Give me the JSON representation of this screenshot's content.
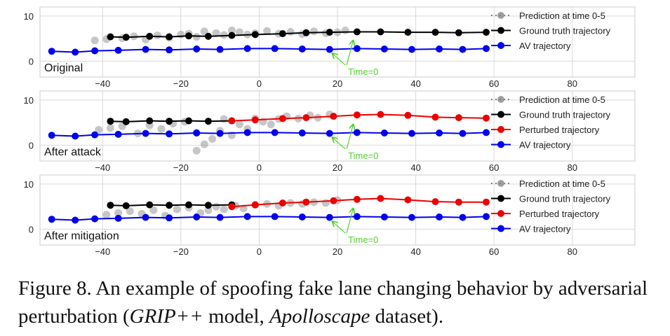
{
  "figure": {
    "caption_prefix": "Figure 8. An example of spoofing fake lane changing behavior by adversarial perturbation (",
    "caption_model": "GRIP++",
    "caption_mid": " model, ",
    "caption_dataset": "Apolloscape",
    "caption_suffix": " dataset)."
  },
  "colors": {
    "av": "#0000ee",
    "ground_truth": "#000000",
    "perturbed": "#ee0000",
    "prediction": "#808080",
    "annotation": "#55cc33",
    "grid": "#d9d9d9"
  },
  "chart_data": [
    {
      "type": "line",
      "panel_label": "Original",
      "xlim": [
        -56,
        96
      ],
      "ylim": [
        -3.5,
        12
      ],
      "xticks": [
        -40,
        -20,
        0,
        20,
        40,
        60,
        80
      ],
      "yticks": [
        0,
        10
      ],
      "grid": true,
      "legend_position": "top-right",
      "annotation": {
        "text": "Time=0",
        "target": [
          24,
          4.5
        ],
        "text_at": [
          22,
          -3
        ]
      },
      "series": [
        {
          "name": "Prediction at time 0-5",
          "style": "prediction",
          "x": [
            -42,
            -39,
            -35,
            -32,
            -29,
            -26,
            -23,
            -20,
            -18,
            -16,
            -14,
            -11,
            -9,
            -7,
            -5,
            -3,
            -1,
            2,
            5,
            8,
            11,
            14,
            17,
            20,
            22
          ],
          "y": [
            4.6,
            4.9,
            5.1,
            5.5,
            4.8,
            5.7,
            5.2,
            5.9,
            6.1,
            5.4,
            6.6,
            6.2,
            5.8,
            6.8,
            6.4,
            5.9,
            6.2,
            6.7,
            6.1,
            6.5,
            6.0,
            6.6,
            6.2,
            6.4,
            6.8
          ]
        },
        {
          "name": "Ground truth trajectory",
          "style": "ground_truth",
          "x": [
            -38,
            -34,
            -28,
            -23,
            -18,
            -13,
            -7,
            -1,
            6,
            12,
            18,
            25,
            31,
            38,
            45,
            51,
            58
          ],
          "y": [
            5.4,
            5.3,
            5.5,
            5.4,
            5.6,
            5.5,
            5.7,
            5.9,
            6.1,
            6.3,
            6.4,
            6.5,
            6.5,
            6.4,
            6.4,
            6.3,
            6.4
          ]
        },
        {
          "name": "AV trajectory",
          "style": "av",
          "x": [
            -53,
            -47,
            -42,
            -36,
            -29,
            -23,
            -16,
            -10,
            -3,
            4,
            11,
            18,
            25,
            32,
            39,
            46,
            52,
            58
          ],
          "y": [
            2.2,
            2.0,
            2.3,
            2.4,
            2.6,
            2.5,
            2.7,
            2.6,
            2.8,
            2.8,
            2.7,
            2.6,
            2.8,
            2.7,
            2.6,
            2.7,
            2.6,
            2.8
          ]
        }
      ]
    },
    {
      "type": "line",
      "panel_label": "After attack",
      "xlim": [
        -56,
        96
      ],
      "ylim": [
        -3.5,
        12
      ],
      "xticks": [
        -40,
        -20,
        0,
        20,
        40,
        60,
        80
      ],
      "yticks": [
        0,
        10
      ],
      "grid": true,
      "legend_position": "top-right",
      "annotation": {
        "text": "Time=0",
        "target": [
          24,
          4.5
        ],
        "text_at": [
          22,
          -3
        ]
      },
      "series": [
        {
          "name": "Prediction at time 0-5",
          "style": "prediction",
          "x": [
            -41,
            -38,
            -35,
            -31,
            -28,
            -25,
            -22,
            -19,
            -16,
            -16,
            -14,
            -12,
            -10,
            -9,
            -7,
            -5,
            -3,
            -1,
            1,
            3,
            5,
            7,
            10,
            13,
            15,
            18
          ],
          "y": [
            3.4,
            3.8,
            4.2,
            2.6,
            4.4,
            3.6,
            4.8,
            5.2,
            2.8,
            -1.2,
            0.2,
            1.4,
            3.2,
            5.8,
            2.2,
            4.6,
            3.6,
            5.9,
            5.2,
            4.6,
            5.8,
            6.4,
            5.9,
            6.6,
            6.1,
            6.8
          ]
        },
        {
          "name": "Ground truth trajectory",
          "style": "ground_truth",
          "x": [
            -38,
            -34,
            -28,
            -23,
            -18,
            -13,
            -7
          ],
          "y": [
            5.3,
            5.2,
            5.4,
            5.3,
            5.4,
            5.3,
            5.4
          ]
        },
        {
          "name": "Perturbed trajectory",
          "style": "perturbed",
          "x": [
            -7,
            -1,
            6,
            12,
            19,
            25,
            31,
            38,
            45,
            51,
            58
          ],
          "y": [
            5.4,
            5.6,
            5.9,
            6.1,
            6.4,
            6.7,
            6.8,
            6.6,
            6.2,
            6.1,
            6.0
          ]
        },
        {
          "name": "AV trajectory",
          "style": "av",
          "x": [
            -53,
            -47,
            -42,
            -36,
            -29,
            -23,
            -16,
            -10,
            -3,
            4,
            11,
            18,
            25,
            32,
            39,
            46,
            52,
            58
          ],
          "y": [
            2.2,
            2.0,
            2.3,
            2.4,
            2.6,
            2.5,
            2.7,
            2.6,
            2.8,
            2.8,
            2.7,
            2.6,
            2.8,
            2.7,
            2.6,
            2.7,
            2.6,
            2.8
          ]
        }
      ]
    },
    {
      "type": "line",
      "panel_label": "After mitigation",
      "xlim": [
        -56,
        96
      ],
      "ylim": [
        -3.5,
        12
      ],
      "xticks": [
        -40,
        -20,
        0,
        20,
        40,
        60,
        80
      ],
      "yticks": [
        0,
        10
      ],
      "grid": true,
      "legend_position": "top-right",
      "annotation": {
        "text": "Time=0",
        "target": [
          24,
          4.5
        ],
        "text_at": [
          22,
          -3
        ]
      },
      "series": [
        {
          "name": "Prediction at time 0-5",
          "style": "prediction",
          "x": [
            -39,
            -36,
            -33,
            -30,
            -27,
            -24,
            -21,
            -18,
            -15,
            -13,
            -11,
            -9,
            -6,
            -4,
            -1,
            2,
            5,
            8,
            11,
            14,
            17,
            20
          ],
          "y": [
            3.2,
            3.6,
            4.0,
            3.4,
            4.2,
            3.0,
            4.4,
            4.8,
            3.6,
            4.2,
            5.0,
            4.4,
            5.2,
            4.6,
            5.4,
            5.6,
            5.2,
            5.8,
            5.6,
            6.0,
            5.8,
            6.4
          ]
        },
        {
          "name": "Ground truth trajectory",
          "style": "ground_truth",
          "x": [
            -38,
            -34,
            -28,
            -23,
            -18,
            -13,
            -7
          ],
          "y": [
            5.3,
            5.2,
            5.4,
            5.3,
            5.4,
            5.3,
            5.4
          ]
        },
        {
          "name": "Perturbed trajectory",
          "style": "perturbed",
          "x": [
            -7,
            -1,
            6,
            12,
            19,
            25,
            31,
            38,
            45,
            51,
            58
          ],
          "y": [
            5.0,
            5.4,
            5.8,
            6.0,
            6.3,
            6.6,
            6.8,
            6.5,
            6.1,
            6.0,
            6.0
          ]
        },
        {
          "name": "AV trajectory",
          "style": "av",
          "x": [
            -53,
            -47,
            -42,
            -36,
            -29,
            -23,
            -16,
            -10,
            -3,
            4,
            11,
            18,
            25,
            32,
            39,
            46,
            52,
            58
          ],
          "y": [
            2.2,
            2.0,
            2.3,
            2.4,
            2.6,
            2.5,
            2.7,
            2.6,
            2.8,
            2.8,
            2.7,
            2.6,
            2.8,
            2.7,
            2.6,
            2.7,
            2.6,
            2.8
          ]
        }
      ]
    }
  ]
}
